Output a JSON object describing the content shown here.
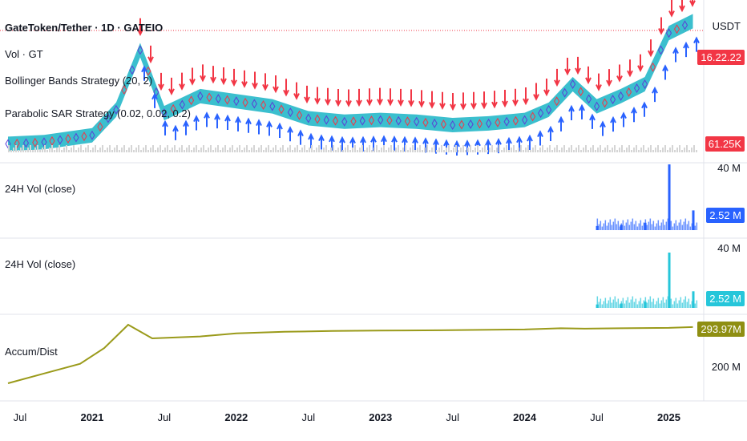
{
  "header": {
    "symbol": "GateToken/Tether · 1D · GATEIO",
    "currency": "USDT"
  },
  "indicators": {
    "vol": "Vol · GT",
    "bb": "Bollinger Bands Strategy (20, 2)",
    "psar": "Parabolic SAR Strategy (0.02, 0.02, 0.2)"
  },
  "price_pane": {
    "price_badge": "16.22.22",
    "vol_badge": "61.25K"
  },
  "vol_pane_1": {
    "label": "24H Vol (close)",
    "top_tick": "40 M",
    "badge": "2.52 M"
  },
  "vol_pane_2": {
    "label": "24H Vol (close)",
    "top_tick": "40 M",
    "badge": "2.52 M"
  },
  "ad_pane": {
    "label": "Accum/Dist",
    "badge": "293.97M",
    "tick": "200 M"
  },
  "x_axis": {
    "ticks": [
      {
        "label": "Jul",
        "year": false
      },
      {
        "label": "2021",
        "year": true
      },
      {
        "label": "Jul",
        "year": false
      },
      {
        "label": "2022",
        "year": true
      },
      {
        "label": "Jul",
        "year": false
      },
      {
        "label": "2023",
        "year": true
      },
      {
        "label": "Jul",
        "year": false
      },
      {
        "label": "2024",
        "year": true
      },
      {
        "label": "Jul",
        "year": false
      },
      {
        "label": "2025",
        "year": true
      }
    ]
  },
  "colors": {
    "band": "#26b8c9",
    "up_arrow": "#2962ff",
    "down_arrow": "#f23645",
    "vol_blue": "#2962ff",
    "vol_teal": "#26c6da",
    "ad_line": "#9a9a1a",
    "price_badge": "#f23645",
    "vol_badge": "#f23645",
    "vol1_badge": "#2962ff",
    "vol2_badge": "#26c6da",
    "ad_badge": "#8f8f12"
  },
  "chart_data": [
    {
      "type": "line",
      "title": "GateToken/Tether · 1D · GATEIO",
      "series": [
        {
          "name": "Bollinger Bands Strategy (20, 2)",
          "x": [
            "2020-06",
            "2020-09",
            "2021-01",
            "2021-03",
            "2021-05",
            "2021-07",
            "2021-10",
            "2022-01",
            "2022-04",
            "2022-07",
            "2022-10",
            "2023-01",
            "2023-04",
            "2023-07",
            "2023-10",
            "2024-01",
            "2024-03",
            "2024-05",
            "2024-07",
            "2024-09",
            "2024-11",
            "2025-01",
            "2025-03"
          ],
          "values": [
            0.2,
            0.21,
            0.25,
            0.4,
            0.75,
            0.38,
            0.48,
            0.45,
            0.42,
            0.35,
            0.33,
            0.34,
            0.33,
            0.31,
            0.32,
            0.34,
            0.4,
            0.55,
            0.42,
            0.48,
            0.55,
            0.85,
            0.92
          ]
        }
      ]
    },
    {
      "type": "bar",
      "title": "24H Vol (close)",
      "series": [
        {
          "name": "24H Vol (close)",
          "x": [
            "2024-07",
            "2024-09",
            "2024-11",
            "2025-01",
            "2025-03"
          ],
          "values": [
            2.5,
            3.2,
            4.5,
            40,
            12
          ]
        }
      ]
    },
    {
      "type": "bar",
      "title": "24H Vol (close)",
      "series": [
        {
          "name": "24H Vol (close)",
          "x": [
            "2024-07",
            "2024-09",
            "2024-11",
            "2025-01",
            "2025-03"
          ],
          "values": [
            2.5,
            3.2,
            4.5,
            40,
            12
          ]
        }
      ]
    },
    {
      "type": "line",
      "title": "Accum/Dist",
      "series": [
        {
          "name": "Accum/Dist",
          "x": [
            "2020-06",
            "2020-09",
            "2020-12",
            "2021-02",
            "2021-04",
            "2021-06",
            "2021-10",
            "2022-01",
            "2022-05",
            "2022-09",
            "2023-01",
            "2023-06",
            "2024-01",
            "2024-04",
            "2024-06",
            "2024-09",
            "2025-01",
            "2025-03"
          ],
          "values": [
            150,
            175,
            200,
            240,
            300,
            265,
            270,
            278,
            282,
            284,
            285,
            286,
            288,
            291,
            290,
            291,
            292,
            293.97
          ]
        }
      ]
    }
  ]
}
